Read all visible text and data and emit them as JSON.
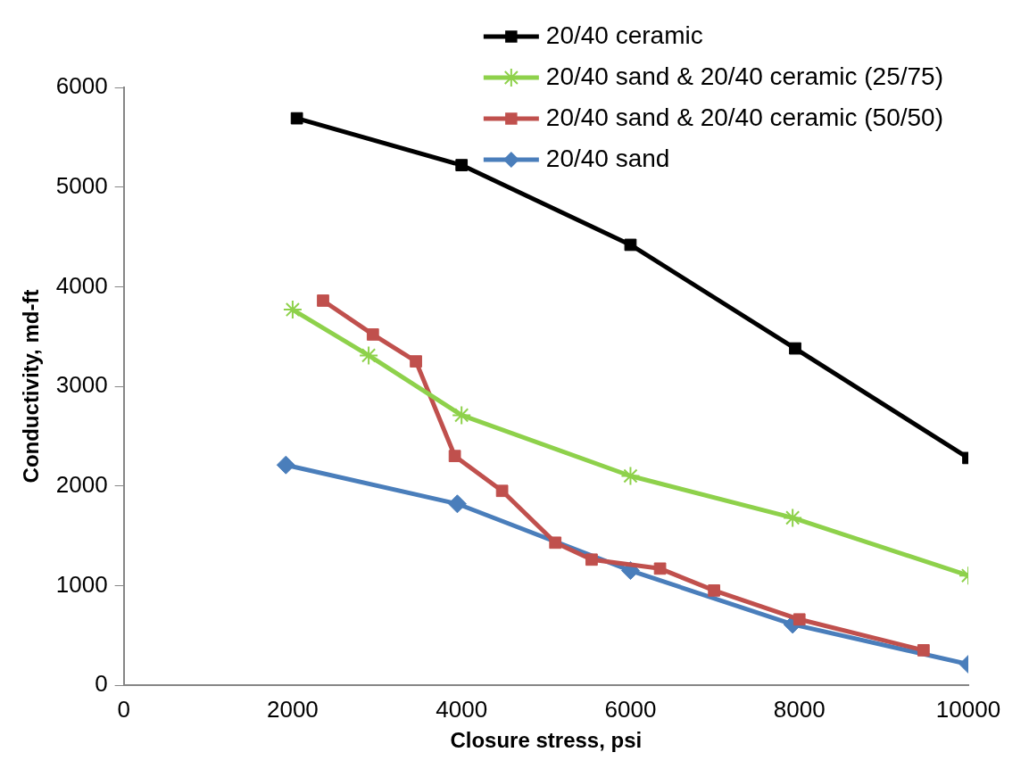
{
  "chart_data": {
    "type": "line",
    "xlabel": "Closure stress, psi",
    "ylabel": "Conductivity, md-ft",
    "xlim": [
      0,
      10000
    ],
    "xticks": [
      0,
      2000,
      4000,
      6000,
      8000,
      10000
    ],
    "ylim": [
      0,
      6000
    ],
    "yticks": [
      0,
      1000,
      2000,
      3000,
      4000,
      5000,
      6000
    ],
    "grid": false,
    "legend": "top right",
    "line_style": "solid",
    "series": [
      {
        "name": "20/40 ceramic",
        "color": "#000000",
        "marker": "square",
        "x": [
          2050,
          4000,
          6000,
          7950,
          10000
        ],
        "values": [
          5690,
          5220,
          4420,
          3380,
          2280
        ]
      },
      {
        "name": "20/40 sand & 20/40 ceramic (25/75)",
        "color": "#8ed14b",
        "marker": "cross",
        "x": [
          2000,
          2900,
          4000,
          6000,
          7920,
          10000
        ],
        "values": [
          3770,
          3310,
          2710,
          2100,
          1680,
          1100
        ]
      },
      {
        "name": "20/40 sand & 20/40 ceramic (50/50)",
        "color": "#c0504d",
        "marker": "square",
        "x": [
          2360,
          2950,
          3460,
          3920,
          4480,
          5110,
          5540,
          6350,
          6990,
          8000,
          9470
        ],
        "values": [
          3860,
          3520,
          3250,
          2300,
          1950,
          1430,
          1260,
          1170,
          950,
          660,
          350
        ]
      },
      {
        "name": "20/40 sand",
        "color": "#4a7ebb",
        "marker": "diamond",
        "x": [
          1920,
          3950,
          6000,
          7920,
          10000
        ],
        "values": [
          2210,
          1820,
          1150,
          610,
          210
        ]
      }
    ]
  }
}
